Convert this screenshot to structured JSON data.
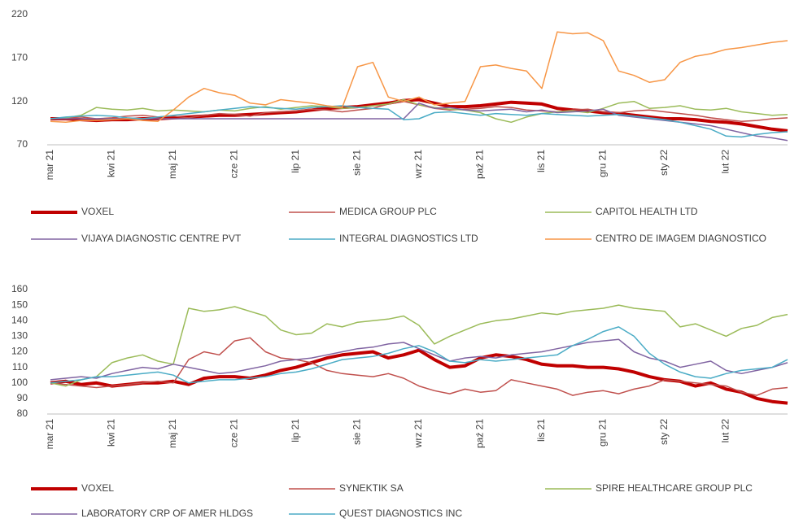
{
  "chart_data": [
    {
      "type": "line",
      "categories": [
        "mar 21",
        null,
        null,
        null,
        "kwi 21",
        null,
        null,
        null,
        "maj 21",
        null,
        null,
        null,
        "cze 21",
        null,
        null,
        null,
        "lip 21",
        null,
        null,
        null,
        "sie 21",
        null,
        null,
        null,
        "wrz 21",
        null,
        null,
        null,
        "paź 21",
        null,
        null,
        null,
        "lis 21",
        null,
        null,
        null,
        "gru 21",
        null,
        null,
        null,
        "sty 22",
        null,
        null,
        null,
        "lut 22",
        null,
        null,
        null,
        null
      ],
      "ylim": [
        70,
        220
      ],
      "yticks": [
        70,
        120,
        170,
        220
      ],
      "series": [
        {
          "name": "VOXEL",
          "color": "#c00000",
          "values": [
            100,
            100,
            99,
            98,
            99,
            99,
            100,
            100,
            101,
            102,
            103,
            104,
            104,
            105,
            106,
            107,
            108,
            110,
            112,
            113,
            114,
            116,
            118,
            121,
            122,
            118,
            114,
            114,
            115,
            117,
            119,
            118,
            117,
            112,
            110,
            109,
            107,
            106,
            104,
            102,
            100,
            100,
            99,
            97,
            96,
            94,
            91,
            88,
            86
          ]
        },
        {
          "name": "MEDICA GROUP PLC",
          "color": "#c0504d",
          "values": [
            100,
            101,
            102,
            100,
            101,
            103,
            104,
            102,
            103,
            101,
            104,
            106,
            105,
            103,
            107,
            108,
            109,
            111,
            110,
            108,
            110,
            112,
            117,
            120,
            116,
            112,
            110,
            111,
            112,
            114,
            113,
            110,
            109,
            108,
            110,
            111,
            108,
            107,
            109,
            110,
            108,
            106,
            104,
            101,
            99,
            97,
            98,
            100,
            101
          ]
        },
        {
          "name": "CAPITOL HEALTH LTD",
          "color": "#9bbb59",
          "values": [
            100,
            101,
            104,
            113,
            111,
            110,
            112,
            109,
            110,
            109,
            108,
            110,
            109,
            112,
            114,
            111,
            113,
            115,
            114,
            112,
            113,
            115,
            117,
            122,
            116,
            113,
            111,
            110,
            107,
            100,
            96,
            102,
            106,
            108,
            109,
            107,
            112,
            118,
            120,
            112,
            113,
            115,
            111,
            110,
            112,
            108,
            106,
            104,
            105
          ]
        },
        {
          "name": "VIJAYA DIAGNOSTIC CENTRE PVT",
          "color": "#8064a2",
          "values": [
            100,
            100,
            100,
            100,
            100,
            100,
            100,
            100,
            100,
            100,
            100,
            100,
            100,
            100,
            100,
            100,
            100,
            100,
            100,
            100,
            100,
            100,
            100,
            100,
            118,
            112,
            113,
            110,
            109,
            110,
            111,
            108,
            110,
            107,
            108,
            109,
            111,
            104,
            102,
            100,
            98,
            96,
            94,
            92,
            88,
            84,
            80,
            78,
            75
          ]
        },
        {
          "name": "INTEGRAL DIAGNOSTICS LTD",
          "color": "#4bacc6",
          "values": [
            100,
            102,
            103,
            104,
            103,
            101,
            100,
            102,
            104,
            106,
            108,
            110,
            112,
            114,
            113,
            112,
            111,
            113,
            114,
            115,
            113,
            112,
            111,
            99,
            100,
            107,
            108,
            106,
            104,
            106,
            105,
            104,
            106,
            105,
            104,
            103,
            104,
            105,
            103,
            101,
            99,
            96,
            92,
            88,
            80,
            79,
            82,
            84,
            85
          ]
        },
        {
          "name": "CENTRO DE IMAGEM DIAGNOSTICO",
          "color": "#f79646",
          "values": [
            97,
            96,
            98,
            98,
            99,
            100,
            98,
            97,
            110,
            125,
            135,
            130,
            127,
            118,
            116,
            122,
            120,
            118,
            115,
            113,
            160,
            165,
            125,
            120,
            125,
            116,
            118,
            120,
            160,
            162,
            158,
            155,
            135,
            200,
            198,
            199,
            190,
            155,
            150,
            142,
            145,
            165,
            172,
            175,
            180,
            182,
            185,
            188,
            190
          ]
        }
      ]
    },
    {
      "type": "line",
      "categories": [
        "mar 21",
        null,
        null,
        null,
        "kwi 21",
        null,
        null,
        null,
        "maj 21",
        null,
        null,
        null,
        "cze 21",
        null,
        null,
        null,
        "lip 21",
        null,
        null,
        null,
        "sie 21",
        null,
        null,
        null,
        "wrz 21",
        null,
        null,
        null,
        "paź 21",
        null,
        null,
        null,
        "lis 21",
        null,
        null,
        null,
        "gru 21",
        null,
        null,
        null,
        "sty 22",
        null,
        null,
        null,
        "lut 22",
        null,
        null,
        null,
        null
      ],
      "ylim": [
        80,
        160
      ],
      "yticks": [
        80,
        90,
        100,
        110,
        120,
        130,
        140,
        150,
        160
      ],
      "series": [
        {
          "name": "VOXEL",
          "color": "#c00000",
          "values": [
            100,
            101,
            99,
            100,
            98,
            99,
            100,
            100,
            101,
            99,
            103,
            104,
            104,
            103,
            105,
            108,
            110,
            113,
            116,
            118,
            119,
            120,
            116,
            118,
            121,
            115,
            110,
            111,
            116,
            118,
            117,
            115,
            112,
            111,
            111,
            110,
            110,
            109,
            107,
            104,
            102,
            101,
            98,
            100,
            96,
            94,
            90,
            88,
            87
          ]
        },
        {
          "name": "SYNEKTIK SA",
          "color": "#c0504d",
          "values": [
            100,
            99,
            98,
            97,
            98,
            99,
            100,
            101,
            100,
            115,
            120,
            118,
            127,
            129,
            120,
            116,
            115,
            113,
            108,
            106,
            105,
            104,
            106,
            103,
            98,
            95,
            93,
            96,
            94,
            95,
            102,
            100,
            98,
            96,
            92,
            94,
            95,
            93,
            96,
            98,
            102,
            101,
            100,
            99,
            98,
            94,
            92,
            96,
            97
          ]
        },
        {
          "name": "SPIRE HEALTHCARE GROUP PLC",
          "color": "#9bbb59",
          "values": [
            100,
            98,
            102,
            104,
            113,
            116,
            118,
            114,
            112,
            148,
            146,
            147,
            149,
            146,
            143,
            134,
            131,
            132,
            138,
            136,
            139,
            140,
            141,
            143,
            137,
            125,
            130,
            134,
            138,
            140,
            141,
            143,
            145,
            144,
            146,
            147,
            148,
            150,
            148,
            147,
            146,
            136,
            138,
            134,
            130,
            135,
            137,
            142,
            144
          ]
        },
        {
          "name": "LABORATORY CRP OF AMER HLDGS",
          "color": "#8064a2",
          "values": [
            102,
            103,
            104,
            103,
            106,
            108,
            110,
            109,
            112,
            110,
            108,
            106,
            107,
            109,
            111,
            114,
            115,
            116,
            118,
            120,
            122,
            123,
            125,
            126,
            122,
            118,
            114,
            116,
            117,
            116,
            118,
            119,
            120,
            122,
            124,
            126,
            127,
            128,
            120,
            116,
            114,
            110,
            112,
            114,
            108,
            106,
            108,
            110,
            113
          ]
        },
        {
          "name": "QUEST DIAGNOSTICS INC",
          "color": "#4bacc6",
          "values": [
            100,
            101,
            102,
            104,
            104,
            105,
            106,
            107,
            105,
            100,
            101,
            102,
            102,
            103,
            104,
            106,
            107,
            109,
            112,
            115,
            116,
            117,
            119,
            122,
            124,
            120,
            114,
            113,
            115,
            114,
            115,
            116,
            117,
            118,
            124,
            128,
            133,
            136,
            130,
            119,
            112,
            107,
            104,
            103,
            106,
            108,
            109,
            110,
            115
          ]
        }
      ]
    }
  ]
}
